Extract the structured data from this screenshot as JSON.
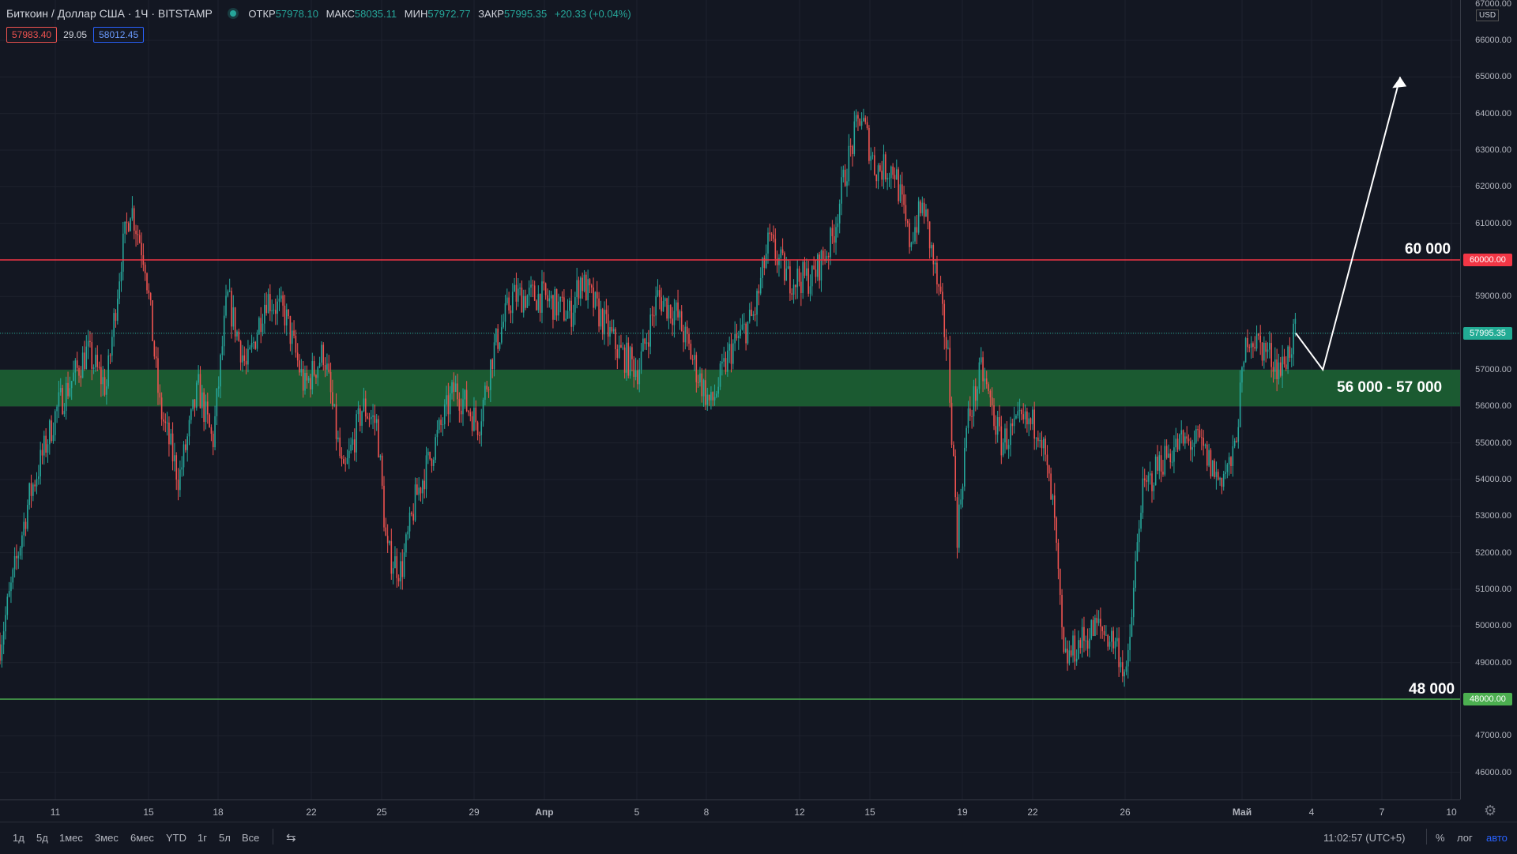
{
  "header": {
    "title": "Биткоин / Доллар США · 1Ч · BITSTAMP",
    "ohlc": [
      {
        "label": "ОТКР",
        "value": "57978.10"
      },
      {
        "label": "МАКС",
        "value": "58035.11"
      },
      {
        "label": "МИН",
        "value": "57972.77"
      },
      {
        "label": "ЗАКР",
        "value": "57995.35"
      }
    ],
    "change": "+20.33 (+0.04%)",
    "sell": "57983.40",
    "spread": "29.05",
    "buy": "58012.45"
  },
  "price_axis": {
    "currency": "USD",
    "ticks": [
      "67000.00",
      "66000.00",
      "65000.00",
      "64000.00",
      "63000.00",
      "62000.00",
      "61000.00",
      "60000.00",
      "59000.00",
      "58000.00",
      "57000.00",
      "56000.00",
      "55000.00",
      "54000.00",
      "53000.00",
      "52000.00",
      "51000.00",
      "50000.00",
      "49000.00",
      "48000.00",
      "47000.00",
      "46000.00"
    ],
    "badges": [
      {
        "value": "60000.00",
        "color": "#f23645"
      },
      {
        "value": "57995.35",
        "color": "#22ab94"
      },
      {
        "value": "48000.00",
        "color": "#4caf50"
      }
    ]
  },
  "time_axis": [
    "11",
    "15",
    "18",
    "22",
    "25",
    "29",
    "Апр",
    "5",
    "8",
    "12",
    "15",
    "19",
    "22",
    "26",
    "Май",
    "4",
    "7",
    "10"
  ],
  "levels": {
    "resistance_label": "60 000",
    "zone_label": "56 000 - 57 000",
    "support_label": "48 000"
  },
  "bottom": {
    "ranges": [
      "1д",
      "5д",
      "1мес",
      "3мес",
      "6мес",
      "YTD",
      "1г",
      "5л",
      "Все"
    ],
    "time": "11:02:57 (UTC+5)",
    "percent": "%",
    "log": "лог",
    "auto": "авто"
  },
  "chart_data": {
    "type": "candlestick",
    "symbol": "BTCUSD",
    "interval": "1Ч",
    "ylim": [
      45500,
      67000
    ],
    "x_ticks": [
      "11",
      "15",
      "18",
      "22",
      "25",
      "29",
      "Апр",
      "5",
      "8",
      "12",
      "15",
      "19",
      "22",
      "26",
      "Май",
      "4",
      "7",
      "10"
    ],
    "close_path": [
      [
        0,
        49500
      ],
      [
        30,
        53500
      ],
      [
        60,
        56000
      ],
      [
        90,
        57500
      ],
      [
        110,
        56500
      ],
      [
        125,
        60000
      ],
      [
        135,
        61500
      ],
      [
        150,
        60000
      ],
      [
        165,
        56000
      ],
      [
        185,
        54000
      ],
      [
        205,
        56500
      ],
      [
        220,
        55000
      ],
      [
        235,
        59000
      ],
      [
        255,
        57000
      ],
      [
        275,
        59000
      ],
      [
        295,
        58500
      ],
      [
        315,
        56500
      ],
      [
        335,
        57500
      ],
      [
        355,
        54000
      ],
      [
        375,
        56000
      ],
      [
        390,
        55500
      ],
      [
        400,
        52000
      ],
      [
        415,
        51500
      ],
      [
        430,
        53500
      ],
      [
        450,
        55000
      ],
      [
        470,
        56500
      ],
      [
        495,
        55500
      ],
      [
        510,
        57500
      ],
      [
        530,
        59000
      ],
      [
        560,
        59000
      ],
      [
        590,
        58500
      ],
      [
        600,
        59500
      ],
      [
        620,
        58500
      ],
      [
        640,
        57500
      ],
      [
        660,
        57000
      ],
      [
        680,
        59000
      ],
      [
        700,
        58500
      ],
      [
        720,
        57000
      ],
      [
        735,
        56000
      ],
      [
        755,
        57500
      ],
      [
        780,
        58500
      ],
      [
        795,
        60500
      ],
      [
        815,
        59500
      ],
      [
        840,
        59500
      ],
      [
        860,
        60500
      ],
      [
        875,
        62500
      ],
      [
        890,
        64000
      ],
      [
        905,
        62500
      ],
      [
        925,
        62500
      ],
      [
        940,
        60500
      ],
      [
        955,
        61500
      ],
      [
        968,
        59500
      ],
      [
        980,
        57500
      ],
      [
        990,
        52500
      ],
      [
        1000,
        55500
      ],
      [
        1015,
        57000
      ],
      [
        1035,
        55000
      ],
      [
        1055,
        55500
      ],
      [
        1075,
        55500
      ],
      [
        1090,
        53000
      ],
      [
        1100,
        49000
      ],
      [
        1115,
        49500
      ],
      [
        1135,
        50000
      ],
      [
        1155,
        49500
      ],
      [
        1165,
        48500
      ],
      [
        1180,
        53500
      ],
      [
        1200,
        54500
      ],
      [
        1220,
        55000
      ],
      [
        1240,
        55000
      ],
      [
        1260,
        54000
      ],
      [
        1275,
        54500
      ],
      [
        1290,
        58000
      ],
      [
        1310,
        57500
      ],
      [
        1325,
        57000
      ],
      [
        1340,
        58000
      ]
    ],
    "levels": [
      {
        "price": 60000,
        "label": "60 000",
        "color": "#f23645"
      },
      {
        "zone": [
          56000,
          57000
        ],
        "label": "56 000 - 57 000",
        "color": "#1b5e33"
      },
      {
        "price": 48000,
        "label": "48 000",
        "color": "#4caf50"
      }
    ],
    "projection": [
      [
        1340,
        58000
      ],
      [
        1368,
        57000
      ],
      [
        1448,
        65000
      ]
    ],
    "last_price": 57995.35
  }
}
